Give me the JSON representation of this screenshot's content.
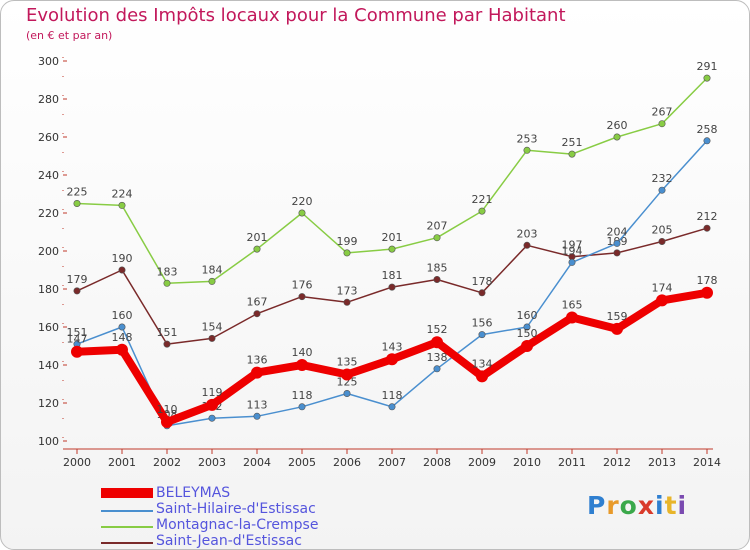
{
  "title": "Evolution des Impôts locaux pour la Commune par Habitant",
  "subtitle": "(en € et par an)",
  "logo_text": "Proxiti",
  "chart_data": {
    "type": "line",
    "x": [
      "2000",
      "2001",
      "2002",
      "2003",
      "2004",
      "2005",
      "2006",
      "2007",
      "2008",
      "2009",
      "2010",
      "2011",
      "2012",
      "2013",
      "2014"
    ],
    "ylim": [
      100,
      300
    ],
    "yticks": [
      100,
      120,
      140,
      160,
      180,
      200,
      220,
      240,
      260,
      280,
      300
    ],
    "grid": false,
    "legend_position": "bottom-left",
    "series": [
      {
        "name": "BELEYMAS",
        "color": "#ee0000",
        "values": [
          147,
          148,
          110,
          119,
          136,
          140,
          135,
          143,
          152,
          134,
          150,
          165,
          159,
          174,
          178
        ]
      },
      {
        "name": "Saint-Hilaire-d'Estissac",
        "color": "#4a8fcf",
        "values": [
          151,
          160,
          108,
          112,
          113,
          118,
          125,
          118,
          138,
          156,
          160,
          194,
          204,
          232,
          258
        ]
      },
      {
        "name": "Montagnac-la-Crempse",
        "color": "#88cc44",
        "values": [
          225,
          224,
          183,
          184,
          201,
          220,
          199,
          201,
          207,
          221,
          253,
          251,
          260,
          267,
          291
        ]
      },
      {
        "name": "Saint-Jean-d'Estissac",
        "color": "#7a2a2a",
        "values": [
          179,
          190,
          151,
          154,
          167,
          176,
          173,
          181,
          185,
          178,
          203,
          197,
          199,
          205,
          212
        ]
      }
    ]
  }
}
